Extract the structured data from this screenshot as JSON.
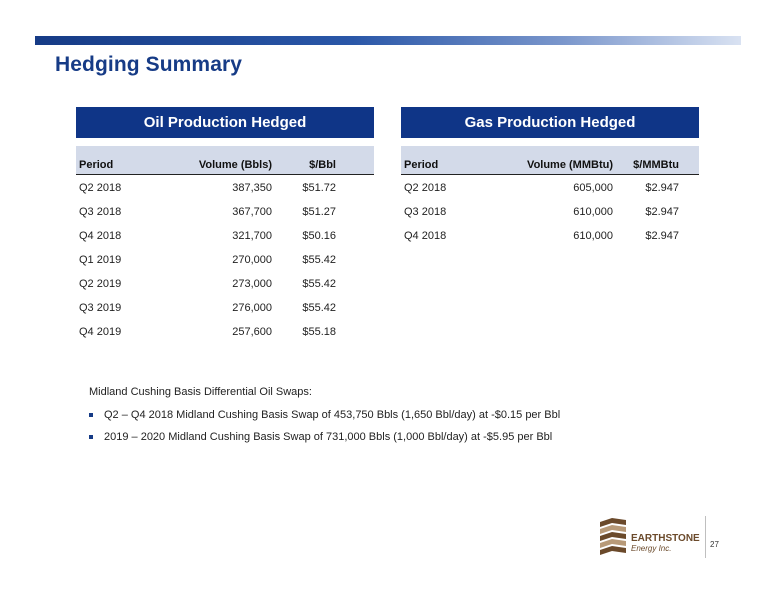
{
  "title": "Hedging Summary",
  "oil": {
    "header": "Oil Production Hedged",
    "columns": [
      "Period",
      "Volume (Bbls)",
      "$/Bbl"
    ],
    "rows": [
      [
        "Q2 2018",
        "387,350",
        "$51.72"
      ],
      [
        "Q3 2018",
        "367,700",
        "$51.27"
      ],
      [
        "Q4 2018",
        "321,700",
        "$50.16"
      ],
      [
        "Q1 2019",
        "270,000",
        "$55.42"
      ],
      [
        "Q2 2019",
        "273,000",
        "$55.42"
      ],
      [
        "Q3 2019",
        "276,000",
        "$55.42"
      ],
      [
        "Q4 2019",
        "257,600",
        "$55.18"
      ]
    ]
  },
  "gas": {
    "header": "Gas Production Hedged",
    "columns": [
      "Period",
      "Volume (MMBtu)",
      "$/MMBtu"
    ],
    "rows": [
      [
        "Q2 2018",
        "605,000",
        "$2.947"
      ],
      [
        "Q3 2018",
        "610,000",
        "$2.947"
      ],
      [
        "Q4 2018",
        "610,000",
        "$2.947"
      ]
    ]
  },
  "swaps": {
    "heading": "Midland Cushing Basis Differential Oil Swaps:",
    "items": [
      "Q2 – Q4 2018 Midland Cushing Basis Swap of 453,750 Bbls (1,650 Bbl/day) at -$0.15 per Bbl",
      "2019 – 2020 Midland Cushing Basis Swap of 731,000 Bbls (1,000 Bbl/day) at -$5.95 per Bbl"
    ]
  },
  "logo": {
    "name": "EARTHSTONE",
    "sub": "Energy Inc.",
    "brown": "#6b4a2b",
    "tan": "#b89a78"
  },
  "page_number": "27",
  "colors": {
    "brand_blue": "#0f3587",
    "column_header_bg": "#d3dae9"
  }
}
